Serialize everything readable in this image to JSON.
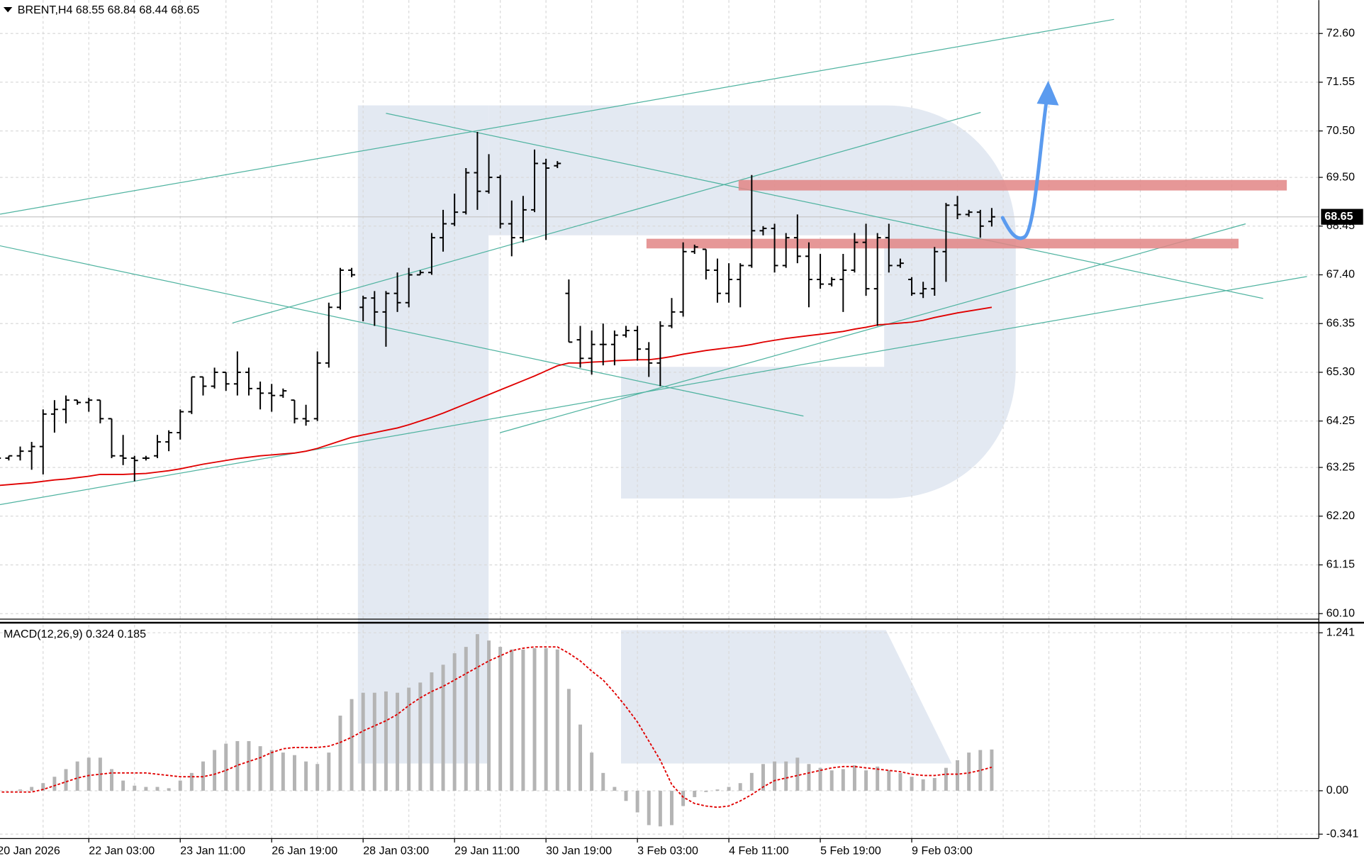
{
  "chart_data": {
    "type": "ohlc",
    "title": "BRENT,H4 68.55 68.84 68.44 68.65",
    "bar_color": "#000000",
    "grid": true,
    "categories": [
      "20 Jan 2026",
      null,
      null,
      null,
      null,
      null,
      null,
      null,
      "22 Jan 03:00",
      null,
      null,
      null,
      null,
      null,
      null,
      null,
      "23 Jan 11:00",
      null,
      null,
      null,
      null,
      null,
      null,
      null,
      "26 Jan 19:00",
      null,
      null,
      null,
      null,
      null,
      null,
      null,
      "28 Jan 03:00",
      null,
      null,
      null,
      null,
      null,
      null,
      null,
      "29 Jan 11:00",
      null,
      null,
      null,
      null,
      null,
      null,
      null,
      "30 Jan 19:00",
      null,
      null,
      null,
      null,
      null,
      null,
      null,
      "3 Feb 03:00",
      null,
      null,
      null,
      null,
      null,
      null,
      null,
      "4 Feb 11:00",
      null,
      null,
      null,
      null,
      null,
      null,
      null,
      "5 Feb 19:00",
      null,
      null,
      null,
      null,
      null,
      null,
      null,
      "9 Feb 03:00",
      null,
      null,
      null,
      null,
      null,
      null,
      null
    ],
    "open": [
      63.4,
      63.45,
      63.5,
      63.6,
      63.7,
      64.4,
      64.5,
      64.7,
      64.65,
      64.7,
      64.3,
      63.5,
      63.45,
      63.45,
      63.5,
      63.8,
      64.0,
      64.45,
      65.2,
      65.0,
      65.3,
      65.05,
      65.3,
      64.95,
      64.85,
      64.8,
      64.7,
      64.3,
      64.3,
      65.5,
      66.7,
      67.5,
      66.7,
      66.9,
      66.6,
      67.0,
      66.8,
      67.4,
      67.45,
      68.2,
      68.5,
      68.75,
      69.6,
      69.2,
      69.5,
      68.5,
      68.2,
      68.8,
      69.8,
      69.75,
      67.0,
      66.0,
      65.6,
      65.9,
      65.9,
      66.1,
      66.2,
      65.8,
      65.5,
      66.3,
      66.6,
      67.9,
      67.95,
      67.5,
      67.0,
      67.3,
      67.6,
      68.35,
      68.4,
      67.6,
      68.2,
      67.8,
      67.3,
      67.2,
      67.3,
      67.5,
      68.1,
      67.1,
      68.2,
      67.6,
      67.3,
      67.0,
      67.1,
      67.9,
      68.9,
      68.7,
      68.75,
      68.55
    ],
    "high": [
      63.5,
      63.5,
      63.7,
      63.8,
      64.5,
      64.7,
      64.8,
      64.7,
      64.75,
      64.7,
      64.3,
      63.95,
      63.5,
      63.5,
      63.95,
      64.05,
      64.5,
      65.2,
      65.2,
      65.4,
      65.3,
      65.75,
      65.4,
      65.1,
      65.05,
      64.95,
      64.7,
      64.6,
      65.75,
      66.8,
      67.55,
      67.55,
      66.95,
      67.05,
      67.05,
      67.45,
      67.55,
      67.5,
      68.3,
      68.8,
      69.15,
      69.7,
      70.48,
      70.0,
      69.55,
      69.0,
      69.1,
      70.1,
      69.9,
      69.85,
      67.3,
      66.3,
      66.2,
      66.35,
      66.2,
      66.3,
      66.3,
      65.95,
      66.4,
      66.9,
      68.1,
      68.05,
      67.95,
      67.75,
      67.65,
      67.65,
      69.55,
      68.45,
      68.5,
      68.3,
      68.7,
      68.1,
      67.85,
      67.35,
      67.85,
      68.3,
      68.5,
      68.3,
      68.5,
      67.75,
      67.35,
      67.25,
      68.0,
      68.95,
      69.1,
      68.8,
      68.8,
      68.84
    ],
    "low": [
      63.3,
      63.4,
      63.4,
      63.2,
      63.1,
      64.0,
      64.2,
      64.6,
      64.45,
      64.2,
      63.45,
      63.3,
      62.95,
      63.4,
      63.45,
      63.6,
      63.85,
      64.4,
      64.8,
      64.95,
      64.9,
      64.8,
      64.8,
      64.5,
      64.45,
      64.75,
      64.2,
      64.15,
      64.25,
      65.4,
      66.65,
      67.35,
      66.4,
      66.3,
      65.85,
      66.6,
      66.7,
      67.4,
      67.4,
      67.9,
      68.45,
      68.7,
      68.8,
      69.15,
      68.4,
      67.8,
      68.1,
      68.75,
      68.15,
      69.7,
      65.95,
      65.4,
      65.25,
      65.45,
      65.45,
      66.05,
      65.55,
      65.2,
      65.0,
      66.25,
      66.5,
      67.85,
      67.3,
      66.8,
      66.8,
      66.7,
      67.55,
      68.25,
      67.45,
      67.55,
      67.65,
      66.7,
      67.1,
      67.15,
      66.6,
      67.45,
      66.95,
      66.3,
      67.45,
      67.55,
      66.95,
      66.9,
      66.95,
      67.25,
      68.6,
      68.65,
      68.2,
      68.44
    ],
    "close": [
      63.45,
      63.5,
      63.6,
      63.7,
      64.4,
      64.5,
      64.7,
      64.65,
      64.7,
      64.3,
      63.5,
      63.45,
      63.4,
      63.45,
      63.8,
      64.0,
      64.45,
      65.2,
      65.0,
      65.3,
      65.05,
      65.3,
      64.95,
      64.85,
      64.8,
      64.9,
      64.3,
      64.25,
      65.5,
      66.7,
      67.5,
      67.4,
      66.9,
      66.6,
      67.0,
      66.8,
      67.4,
      67.45,
      68.2,
      68.5,
      68.75,
      69.6,
      69.2,
      69.5,
      68.5,
      68.2,
      68.8,
      69.8,
      69.7,
      69.8,
      65.95,
      65.6,
      65.9,
      65.9,
      66.1,
      66.2,
      65.8,
      65.5,
      66.3,
      66.6,
      67.9,
      68.0,
      67.5,
      67.0,
      67.3,
      67.6,
      68.35,
      68.4,
      67.6,
      68.2,
      67.8,
      67.3,
      67.2,
      67.3,
      67.5,
      68.1,
      67.1,
      68.2,
      67.6,
      67.65,
      67.0,
      67.1,
      67.9,
      68.9,
      68.7,
      68.75,
      68.45,
      68.65
    ],
    "ma": {
      "color": "#e00000",
      "values": [
        62.86,
        62.88,
        62.9,
        62.92,
        62.95,
        62.98,
        63.0,
        63.03,
        63.06,
        63.1,
        63.1,
        63.1,
        63.11,
        63.12,
        63.15,
        63.18,
        63.22,
        63.27,
        63.32,
        63.36,
        63.4,
        63.44,
        63.47,
        63.5,
        63.52,
        63.54,
        63.56,
        63.6,
        63.66,
        63.74,
        63.82,
        63.9,
        63.95,
        64.0,
        64.05,
        64.1,
        64.17,
        64.25,
        64.33,
        64.42,
        64.52,
        64.62,
        64.72,
        64.82,
        64.92,
        65.02,
        65.12,
        65.22,
        65.33,
        65.44,
        65.5,
        65.5,
        65.52,
        65.53,
        65.55,
        65.56,
        65.57,
        65.57,
        65.6,
        65.64,
        65.69,
        65.73,
        65.77,
        65.8,
        65.83,
        65.86,
        65.9,
        65.95,
        65.99,
        66.03,
        66.06,
        66.09,
        66.12,
        66.15,
        66.18,
        66.23,
        66.27,
        66.32,
        66.34,
        66.36,
        66.38,
        66.42,
        66.48,
        66.53,
        66.58,
        66.62,
        66.66,
        66.7
      ]
    },
    "ylim": [
      59.99,
      73.32
    ],
    "yticks": [
      {
        "value": 72.6,
        "label": "72.60"
      },
      71.55,
      {
        "value": 70.5,
        "label": "70.50"
      },
      {
        "value": 69.5,
        "label": "69.50"
      },
      68.45,
      {
        "value": 67.4,
        "label": "67.40"
      },
      66.35,
      {
        "value": 65.3,
        "label": "65.30"
      },
      64.25,
      63.25,
      {
        "value": 62.2,
        "label": "62.20"
      },
      61.15,
      {
        "value": 60.1,
        "label": "60.10"
      }
    ],
    "last_price": 68.65,
    "macd": {
      "title": "MACD(12,26,9) 0.324 0.185",
      "histogram": {
        "color": "#b4b4b4",
        "values": [
          0.01,
          0,
          0.01,
          0.03,
          0.06,
          0.11,
          0.17,
          0.23,
          0.26,
          0.26,
          0.17,
          0.08,
          0.04,
          0.03,
          0.03,
          0.02,
          0.08,
          0.14,
          0.23,
          0.32,
          0.37,
          0.39,
          0.39,
          0.35,
          0.32,
          0.3,
          0.28,
          0.23,
          0.21,
          0.3,
          0.59,
          0.72,
          0.77,
          0.77,
          0.78,
          0.77,
          0.81,
          0.85,
          0.93,
          0.99,
          1.08,
          1.13,
          1.23,
          1.18,
          1.13,
          1.11,
          1.11,
          1.12,
          1.12,
          1.11,
          0.8,
          0.52,
          0.3,
          0.14,
          0.03,
          -0.08,
          -0.17,
          -0.27,
          -0.28,
          -0.27,
          -0.12,
          -0.05,
          -0.01,
          0.01,
          0.03,
          0.06,
          0.14,
          0.21,
          0.23,
          0.23,
          0.26,
          0.21,
          0.18,
          0.16,
          0.17,
          0.2,
          0.16,
          0.19,
          0.16,
          0.14,
          0.11,
          0.09,
          0.1,
          0.18,
          0.24,
          0.3,
          0.32,
          0.324
        ]
      },
      "signal": {
        "color": "#e00000",
        "values": [
          -0.01,
          -0.01,
          -0.01,
          -0.01,
          0.01,
          0.04,
          0.07,
          0.1,
          0.12,
          0.13,
          0.14,
          0.14,
          0.14,
          0.14,
          0.13,
          0.12,
          0.11,
          0.11,
          0.11,
          0.13,
          0.16,
          0.2,
          0.23,
          0.26,
          0.3,
          0.33,
          0.34,
          0.34,
          0.34,
          0.35,
          0.38,
          0.42,
          0.47,
          0.51,
          0.55,
          0.6,
          0.67,
          0.73,
          0.78,
          0.82,
          0.87,
          0.92,
          0.97,
          1.02,
          1.06,
          1.1,
          1.12,
          1.13,
          1.13,
          1.13,
          1.08,
          1.02,
          0.94,
          0.87,
          0.77,
          0.66,
          0.54,
          0.39,
          0.24,
          0.05,
          -0.05,
          -0.1,
          -0.12,
          -0.13,
          -0.12,
          -0.08,
          -0.03,
          0.03,
          0.08,
          0.1,
          0.12,
          0.14,
          0.16,
          0.18,
          0.19,
          0.19,
          0.18,
          0.17,
          0.16,
          0.15,
          0.13,
          0.12,
          0.12,
          0.13,
          0.13,
          0.14,
          0.16,
          0.185
        ]
      },
      "ylim": [
        -0.372,
        1.303
      ],
      "yticks": [
        1.241,
        {
          "value": 0,
          "label": "0.00"
        },
        -0.341
      ]
    }
  }
}
